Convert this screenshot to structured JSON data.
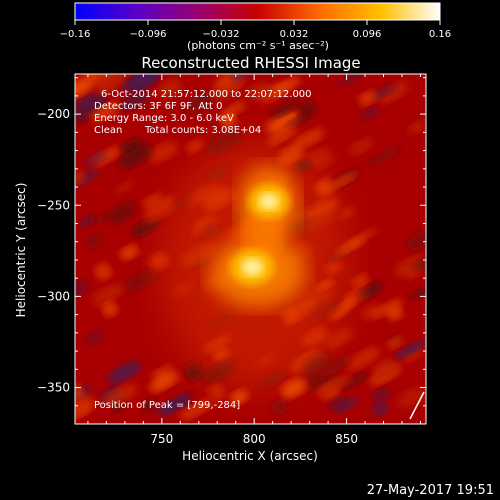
{
  "chart_data": {
    "type": "heatmap",
    "title": "Reconstructed RHESSI Image",
    "xlabel": "Heliocentric X (arcsec)",
    "ylabel": "Heliocentric Y (arcsec)",
    "xlim": [
      703,
      893
    ],
    "ylim": [
      -370,
      -178
    ],
    "x_ticks": [
      750,
      800,
      850
    ],
    "y_ticks": [
      -200,
      -250,
      -300,
      -350
    ],
    "x_tick_labels": [
      "750",
      "800",
      "850"
    ],
    "y_tick_labels": [
      "−200",
      "−250",
      "−300",
      "−350"
    ],
    "colorbar": {
      "range": [
        -0.16,
        0.16
      ],
      "ticks": [
        -0.16,
        -0.096,
        -0.032,
        0.032,
        0.096,
        0.16
      ],
      "tick_labels": [
        "−0.16",
        "−0.096",
        "−0.032",
        "0.032",
        "0.096",
        "0.16"
      ],
      "unit_label": "(photons cm⁻² s⁻¹ asec⁻²)",
      "colors": [
        "#0000ff",
        "#5a00c8",
        "#9a0070",
        "#c80000",
        "#ff6a00",
        "#ffc000",
        "#ffffff"
      ]
    },
    "sources": [
      {
        "x": 808,
        "y": -248,
        "peak": 0.15
      },
      {
        "x": 799,
        "y": -284,
        "peak": 0.16
      }
    ],
    "annotations": {
      "time": "6-Oct-2014 21:57:12.000 to 22:07:12.000",
      "detectors": "Detectors: 3F 6F 9F, Att 0",
      "energy": "Energy Range: 3.0 - 6.0 keV",
      "method": "Clean",
      "counts": "Total counts: 3.08E+04",
      "peak": "Position of Peak = [799,-284]"
    },
    "timestamp": "27-May-2017 19:51"
  }
}
